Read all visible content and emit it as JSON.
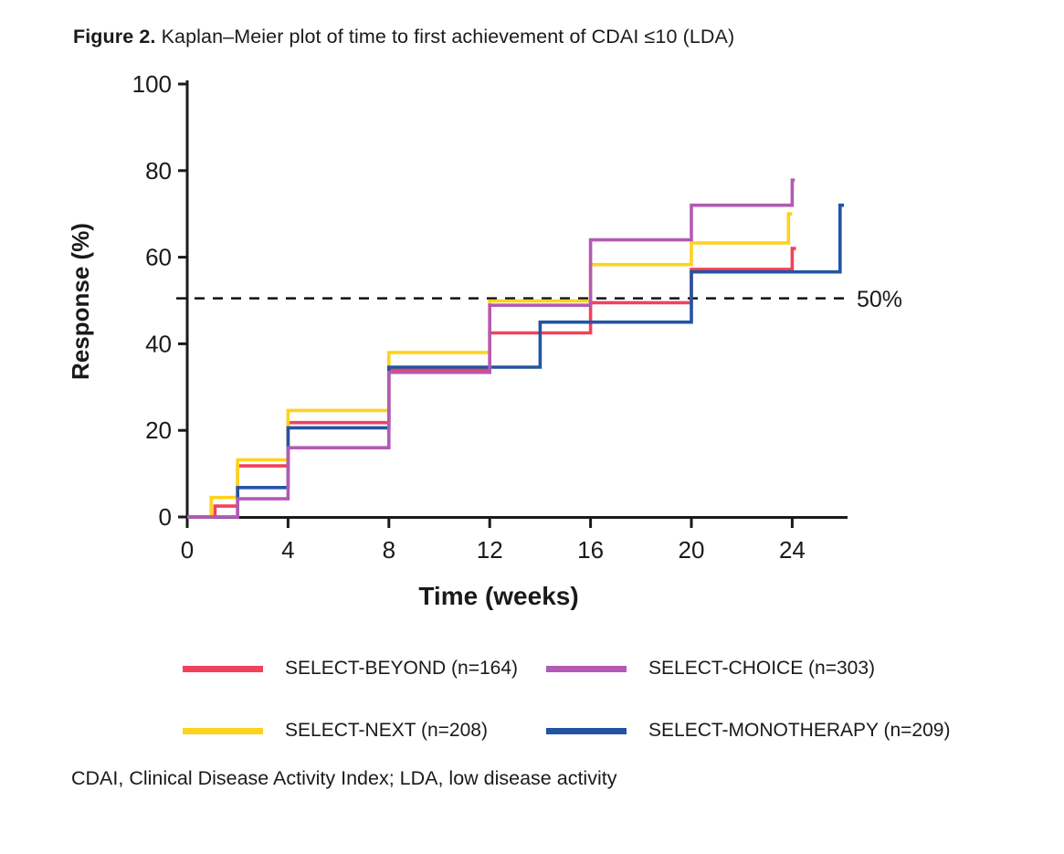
{
  "figure": {
    "title_prefix": "Figure 2.",
    "title_text": " Kaplan–Meier plot of time to first achievement of CDAI ≤10 (LDA)",
    "footnote": "CDAI, Clinical Disease Activity Index; LDA, low disease activity"
  },
  "chart_data": {
    "type": "line",
    "subtype": "kaplan-meier-step",
    "title": "Time to first achievement of CDAI ≤10 (LDA)",
    "xlabel": "Time (weeks)",
    "ylabel": "Response (%)",
    "xlim": [
      0,
      26.2
    ],
    "ylim": [
      0,
      100
    ],
    "x_ticks": [
      0,
      4,
      8,
      12,
      16,
      20,
      24
    ],
    "y_ticks": [
      0,
      20,
      40,
      60,
      80,
      100
    ],
    "grid": false,
    "legend_position": "bottom",
    "reference_line": {
      "y": 50.5,
      "label": "50%",
      "style": "dashed",
      "color": "#111111"
    },
    "axis_color": "#1a1a1a",
    "series": [
      {
        "name": "SELECT-BEYOND (n=164)",
        "color": "#F1425C",
        "points": [
          [
            0,
            0
          ],
          [
            1.1,
            0
          ],
          [
            1.1,
            2.5
          ],
          [
            2,
            2.5
          ],
          [
            2,
            11.8
          ],
          [
            4,
            11.8
          ],
          [
            4,
            21.8
          ],
          [
            8,
            21.8
          ],
          [
            8,
            34.0
          ],
          [
            12,
            34.0
          ],
          [
            12,
            42.5
          ],
          [
            16,
            42.5
          ],
          [
            16,
            49.5
          ],
          [
            20,
            49.5
          ],
          [
            20,
            57.2
          ],
          [
            24,
            57.2
          ],
          [
            24,
            62
          ],
          [
            24.15,
            62
          ]
        ]
      },
      {
        "name": "SELECT-NEXT (n=208)",
        "color": "#FFD21C",
        "points": [
          [
            0,
            0
          ],
          [
            0.95,
            0
          ],
          [
            0.95,
            4.5
          ],
          [
            2,
            4.5
          ],
          [
            2,
            13.2
          ],
          [
            4,
            13.2
          ],
          [
            4,
            24.6
          ],
          [
            8,
            24.6
          ],
          [
            8,
            38
          ],
          [
            12,
            38
          ],
          [
            12,
            49.9
          ],
          [
            16,
            49.9
          ],
          [
            16,
            58.3
          ],
          [
            20,
            58.3
          ],
          [
            20,
            63.3
          ],
          [
            23.85,
            63.3
          ],
          [
            23.85,
            70
          ],
          [
            24,
            70
          ]
        ]
      },
      {
        "name": "SELECT-MONOTHERAPY (n=209)",
        "color": "#2254A3",
        "points": [
          [
            0,
            0
          ],
          [
            2,
            0
          ],
          [
            2,
            6.8
          ],
          [
            4,
            6.8
          ],
          [
            4,
            20.6
          ],
          [
            8,
            20.6
          ],
          [
            8,
            34.6
          ],
          [
            14,
            34.6
          ],
          [
            14,
            45
          ],
          [
            20,
            45
          ],
          [
            20,
            56.6
          ],
          [
            25.9,
            56.6
          ],
          [
            25.9,
            72
          ],
          [
            26.05,
            72
          ]
        ]
      },
      {
        "name": "SELECT-CHOICE (n=303)",
        "color": "#B25AB4",
        "points": [
          [
            0,
            0
          ],
          [
            2,
            0
          ],
          [
            2,
            4.2
          ],
          [
            4,
            4.2
          ],
          [
            4,
            16
          ],
          [
            8,
            16
          ],
          [
            8,
            33.4
          ],
          [
            12,
            33.4
          ],
          [
            12,
            48.9
          ],
          [
            16,
            48.9
          ],
          [
            16,
            64
          ],
          [
            20,
            64
          ],
          [
            20,
            72
          ],
          [
            24,
            72
          ],
          [
            24,
            77.8
          ],
          [
            24.1,
            77.8
          ]
        ]
      }
    ]
  },
  "legend": {
    "items": [
      {
        "label": "SELECT-BEYOND (n=164)",
        "color": "#F1425C"
      },
      {
        "label": "SELECT-CHOICE (n=303)",
        "color": "#B25AB4"
      },
      {
        "label": "SELECT-NEXT (n=208)",
        "color": "#FFD21C"
      },
      {
        "label": "SELECT-MONOTHERAPY (n=209)",
        "color": "#2254A3"
      }
    ]
  }
}
